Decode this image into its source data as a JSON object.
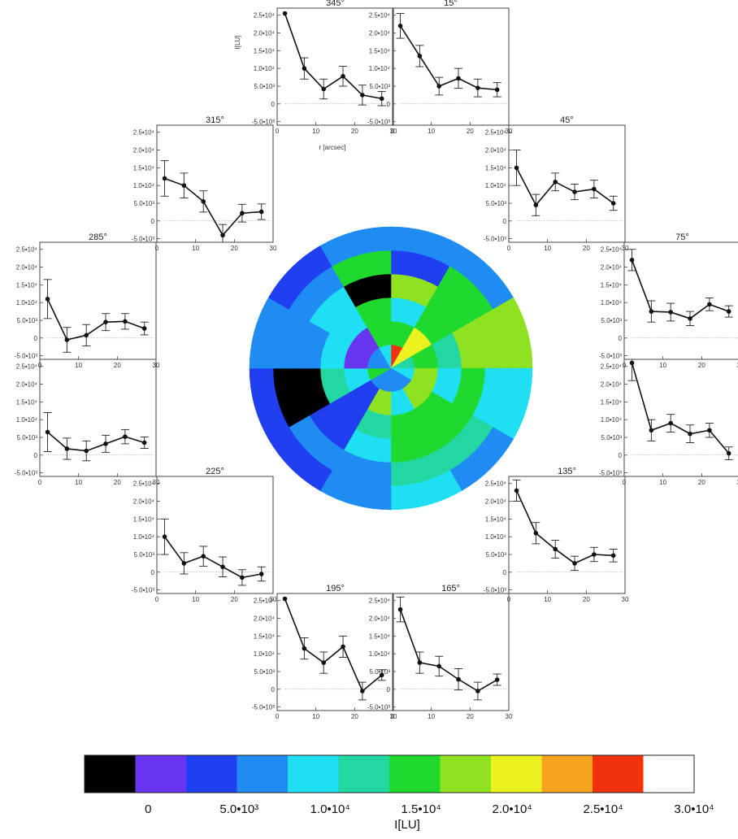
{
  "chart_data": {
    "type": "polar-heatmap-with-radial-profiles",
    "profile_panels": [
      {
        "title": "345°",
        "angle": 345,
        "ylabel": "I[LU]",
        "xlabel": "r [arcsec]",
        "x": [
          2,
          7,
          12,
          17,
          22,
          27
        ],
        "y": [
          25500,
          10000,
          4200,
          7800,
          2500,
          1500
        ],
        "err": [
          0,
          3000,
          2800,
          2800,
          2800,
          2000
        ]
      },
      {
        "title": "15°",
        "angle": 15,
        "x": [
          2,
          7,
          12,
          17,
          22,
          27
        ],
        "y": [
          22000,
          13500,
          5000,
          7200,
          4500,
          4000
        ],
        "err": [
          3500,
          3000,
          2500,
          2800,
          2500,
          2000
        ]
      },
      {
        "title": "45°",
        "angle": 45,
        "x": [
          2,
          7,
          12,
          17,
          22,
          27
        ],
        "y": [
          15000,
          4500,
          11000,
          8200,
          9000,
          5000
        ],
        "err": [
          5000,
          3000,
          2500,
          2200,
          2500,
          2000
        ]
      },
      {
        "title": "75°",
        "angle": 75,
        "x": [
          2,
          7,
          12,
          17,
          22,
          27
        ],
        "y": [
          22000,
          7500,
          7300,
          5500,
          9500,
          7500
        ],
        "err": [
          3000,
          3000,
          2500,
          2000,
          1800,
          1600
        ]
      },
      {
        "title": "",
        "angle": 105,
        "x": [
          2,
          7,
          12,
          17,
          22,
          27
        ],
        "y": [
          26000,
          7000,
          9000,
          6000,
          7000,
          500
        ],
        "err": [
          5000,
          3000,
          2500,
          2500,
          2000,
          1800
        ]
      },
      {
        "title": "135°",
        "angle": 135,
        "x": [
          2,
          7,
          12,
          17,
          22,
          27
        ],
        "y": [
          23000,
          11000,
          6500,
          2500,
          5000,
          4700
        ],
        "err": [
          3000,
          3000,
          2500,
          2000,
          2000,
          1800
        ]
      },
      {
        "title": "165°",
        "angle": 165,
        "x": [
          2,
          7,
          12,
          17,
          22,
          27
        ],
        "y": [
          22500,
          7500,
          6500,
          2800,
          -500,
          2700
        ],
        "err": [
          3500,
          3000,
          2800,
          3000,
          2500,
          1600
        ]
      },
      {
        "title": "195°",
        "angle": 195,
        "x": [
          2,
          7,
          12,
          17,
          22,
          27
        ],
        "y": [
          25500,
          11500,
          7500,
          12000,
          -500,
          4000
        ],
        "err": [
          0,
          3000,
          3000,
          3000,
          2500,
          1500
        ]
      },
      {
        "title": "225°",
        "angle": 225,
        "x": [
          2,
          7,
          12,
          17,
          22,
          27
        ],
        "y": [
          10000,
          2500,
          4500,
          1500,
          -1500,
          -500
        ],
        "err": [
          5000,
          3000,
          2800,
          2800,
          2200,
          2000
        ]
      },
      {
        "title": "",
        "angle": 255,
        "x": [
          2,
          7,
          12,
          17,
          22,
          27
        ],
        "y": [
          6500,
          1800,
          1200,
          3200,
          5200,
          3500
        ],
        "err": [
          5500,
          3000,
          2800,
          2400,
          2000,
          1600
        ]
      },
      {
        "title": "285°",
        "angle": 285,
        "x": [
          2,
          7,
          12,
          17,
          22,
          27
        ],
        "y": [
          11000,
          -500,
          800,
          4500,
          4700,
          2700
        ],
        "err": [
          5500,
          3500,
          3000,
          2400,
          2200,
          1800
        ]
      },
      {
        "title": "315°",
        "angle": 315,
        "x": [
          2,
          7,
          12,
          17,
          22,
          27
        ],
        "y": [
          12000,
          10000,
          5500,
          -4000,
          2200,
          2600
        ],
        "err": [
          5000,
          3500,
          3000,
          3000,
          2500,
          2200
        ]
      }
    ],
    "yticks": [
      "2.5•10⁴",
      "2.0•10⁴",
      "1.5•10⁴",
      "1.0•10⁴",
      "5.0•10³",
      "0",
      "-5.0•10³"
    ],
    "ytick_values": [
      25000,
      20000,
      15000,
      10000,
      5000,
      0,
      -5000
    ],
    "xticks": [
      "0",
      "10",
      "20",
      "30"
    ],
    "xtick_values": [
      0,
      10,
      20,
      30
    ],
    "xlim": [
      0,
      30
    ],
    "ylim": [
      -6000,
      27000
    ],
    "polar_map": {
      "rings": 6,
      "sectors": 12,
      "sector_order_deg_clockwise_from_top": [
        0,
        30,
        60,
        90,
        120,
        150,
        180,
        210,
        240,
        270,
        300,
        330
      ],
      "values_inner_to_outer": [
        [
          26000,
          20000,
          13000,
          8500,
          7500,
          6500,
          6500,
          7000,
          14000,
          6500,
          7500,
          8500
        ],
        [
          14000,
          19500,
          15500,
          18500,
          17500,
          8000,
          17500,
          3000,
          8500,
          800,
          0,
          15500
        ],
        [
          8000,
          14500,
          12500,
          10000,
          13500,
          14500,
          11500,
          3000,
          12000,
          8000,
          9500,
          14500
        ],
        [
          16500,
          16000,
          18500,
          15500,
          15000,
          14500,
          10000,
          3500,
          -3000,
          5500,
          8000,
          -3000
        ],
        [
          4500,
          14500,
          16500,
          9500,
          11500,
          13000,
          6500,
          6000,
          -3000,
          5500,
          5500,
          15500
        ],
        [
          5000,
          6000,
          17000,
          8000,
          7500,
          8500,
          5000,
          4500,
          4500,
          5500,
          3500,
          6000
        ]
      ]
    },
    "colorbar": {
      "label": "I[LU]",
      "tick_labels": [
        "0",
        "5.0•10³",
        "1.0•10⁴",
        "1.5•10⁴",
        "2.0•10⁴",
        "2.5•10⁴",
        "3.0•10⁴"
      ],
      "tick_values": [
        0,
        5000,
        10000,
        15000,
        20000,
        25000,
        30000
      ],
      "range": [
        -3500,
        30000
      ],
      "colors": [
        "#000000",
        "#6a35f0",
        "#1f3ff0",
        "#1e8cf2",
        "#1fe0f2",
        "#22d7a2",
        "#1fd92f",
        "#8ee21f",
        "#ecf21f",
        "#f7a41e",
        "#f0320f",
        "#ffffff"
      ]
    }
  }
}
